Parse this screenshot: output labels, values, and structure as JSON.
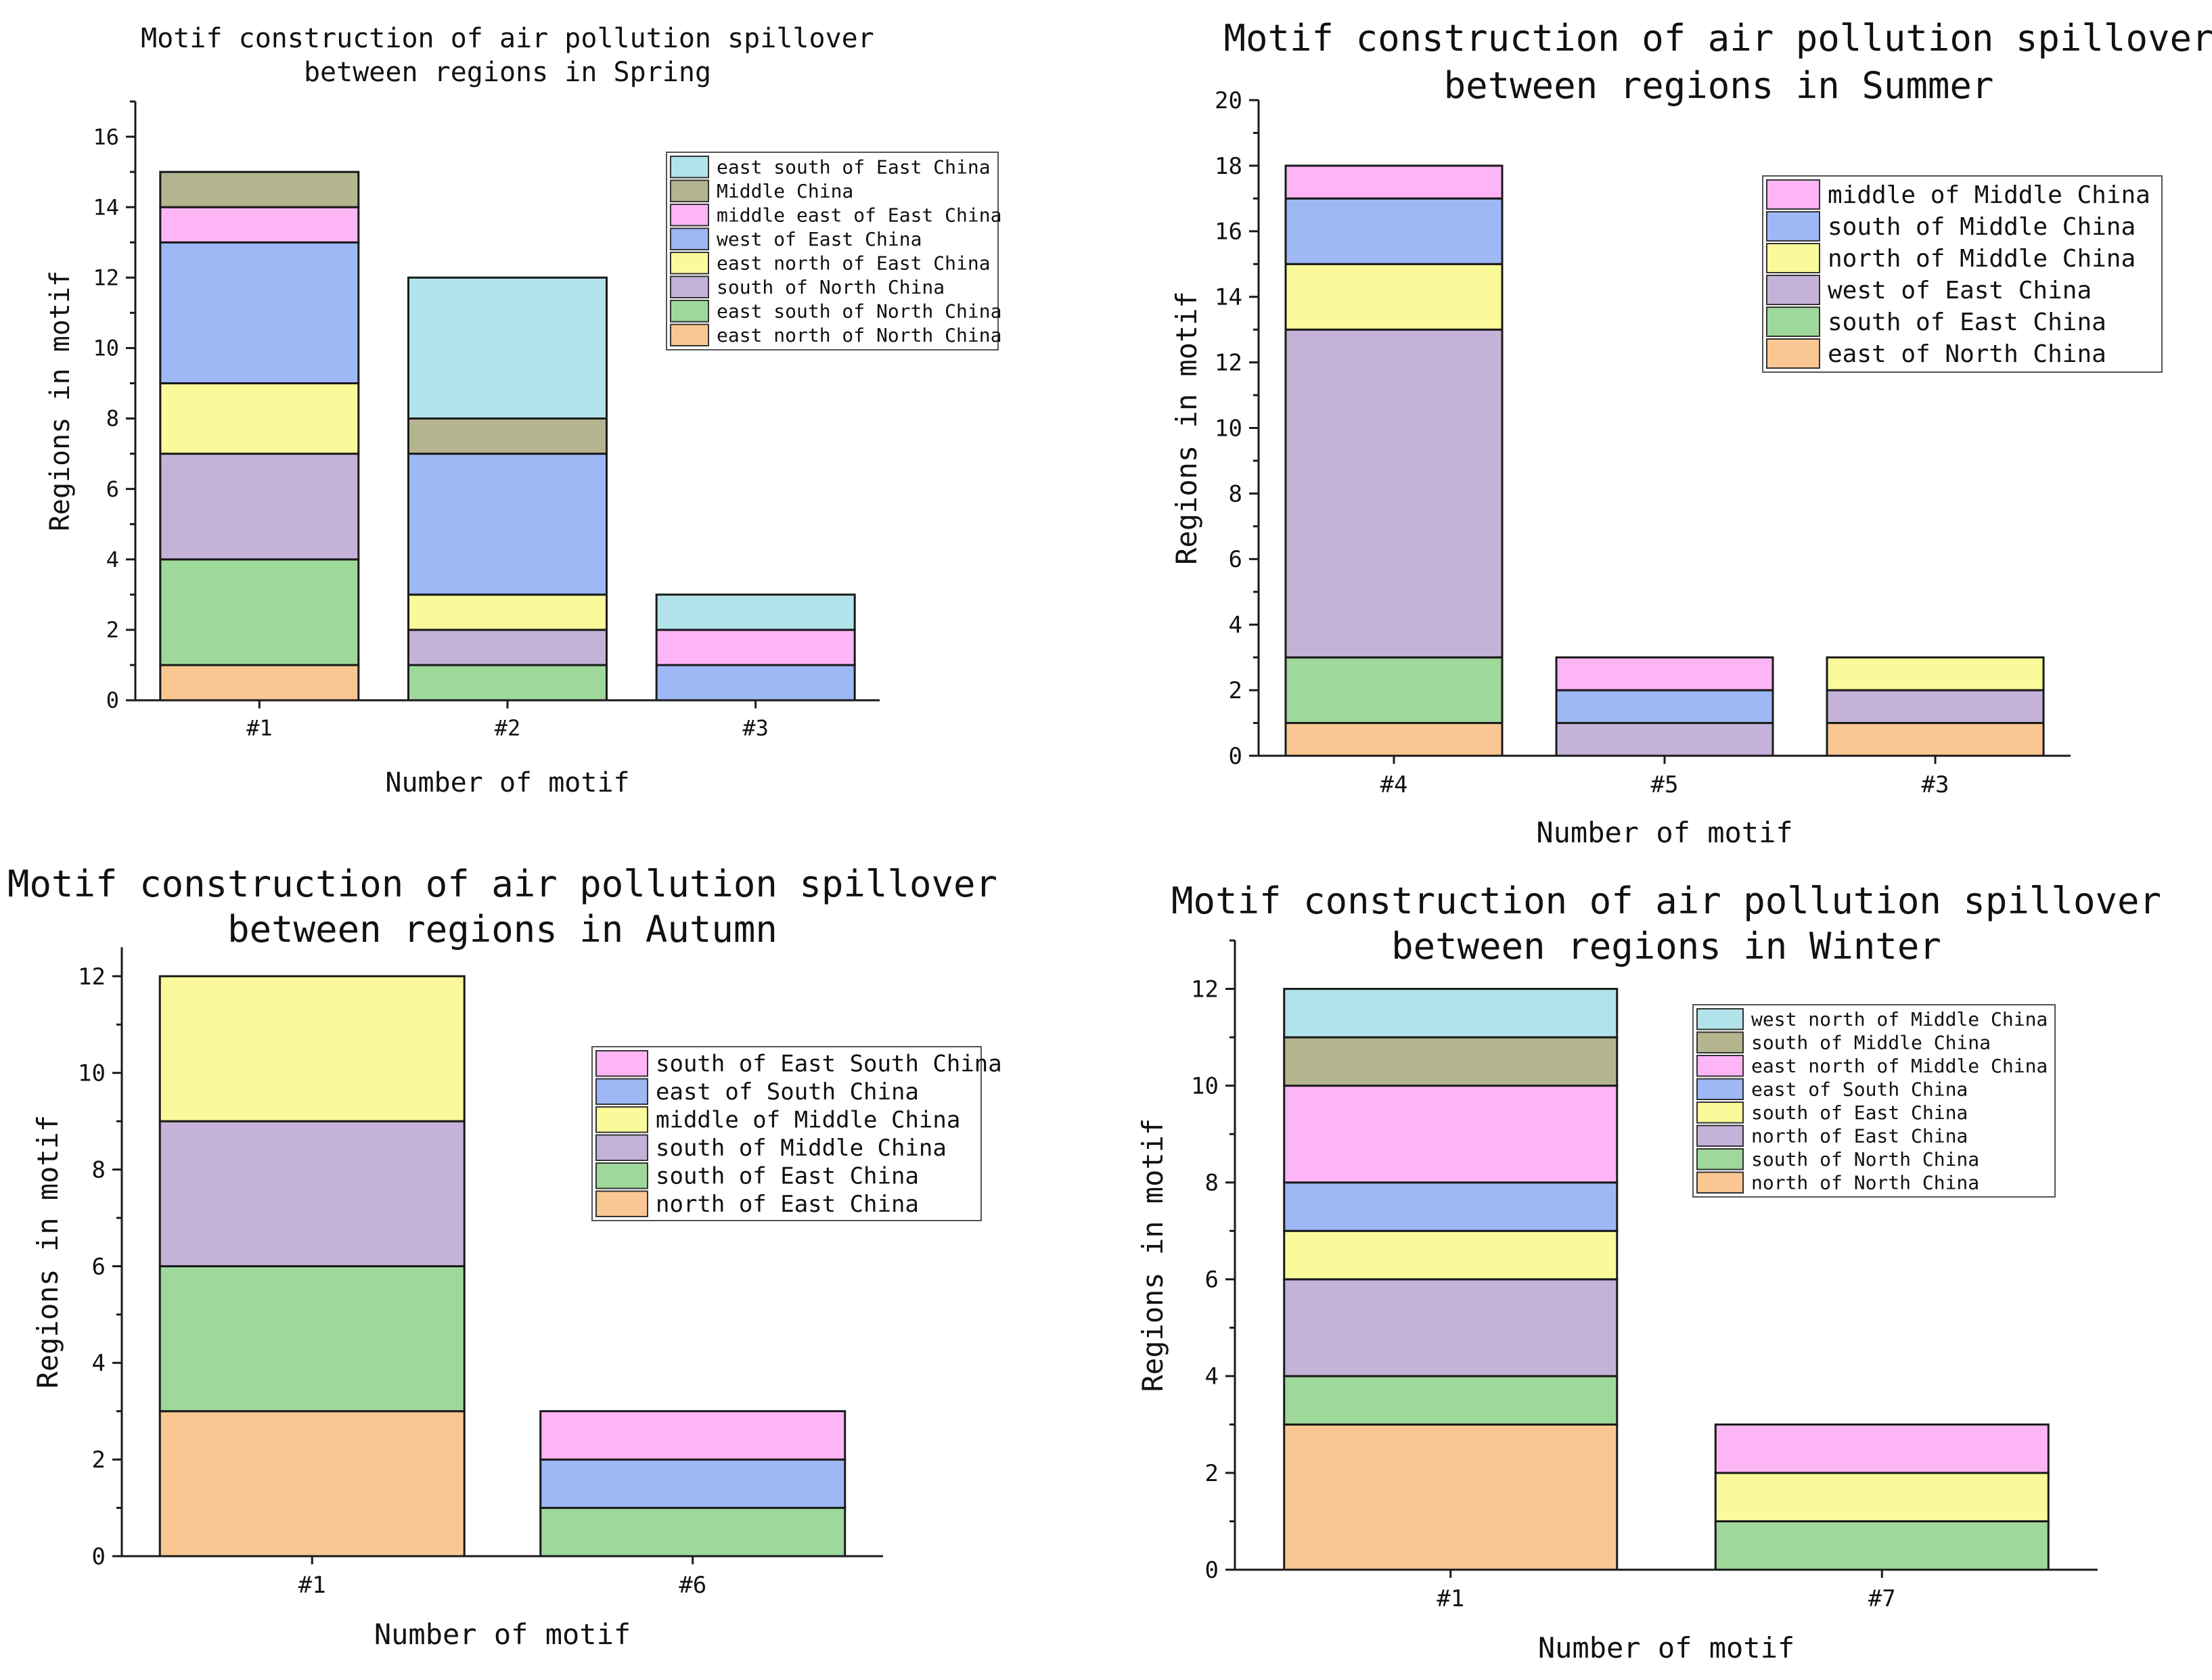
{
  "chart_data": [
    {
      "type": "bar",
      "stacked": true,
      "title": [
        "Motif construction of air pollution spillover",
        "between regions in Spring"
      ],
      "xlabel": "Number of motif",
      "ylabel": "Regions in motif",
      "ylim": [
        0,
        17
      ],
      "yticks": [
        0,
        2,
        4,
        6,
        8,
        10,
        12,
        14,
        16
      ],
      "categories": [
        "#1",
        "#2",
        "#3"
      ],
      "legend_position": "top-right",
      "series": [
        {
          "name": "east north of North China",
          "color": "#fac793",
          "values": [
            1,
            0,
            0
          ]
        },
        {
          "name": "east south of North China",
          "color": "#9ed89a",
          "values": [
            3,
            1,
            0
          ]
        },
        {
          "name": "south of North China",
          "color": "#c4b2d8",
          "values": [
            3,
            1,
            0
          ]
        },
        {
          "name": "east north of East China",
          "color": "#fafa9b",
          "values": [
            2,
            1,
            0
          ]
        },
        {
          "name": "west of East China",
          "color": "#9db8f5",
          "values": [
            4,
            4,
            1
          ]
        },
        {
          "name": "middle east of East China",
          "color": "#fdb5f5",
          "values": [
            1,
            0,
            1
          ]
        },
        {
          "name": "Middle China",
          "color": "#b4b48f",
          "values": [
            1,
            1,
            0
          ]
        },
        {
          "name": "east south of East China",
          "color": "#b3e3ea",
          "values": [
            0,
            4,
            1
          ]
        }
      ]
    },
    {
      "type": "bar",
      "stacked": true,
      "title": [
        "Motif construction of air pollution spillover",
        "between regions in Summer"
      ],
      "xlabel": "Number of motif",
      "ylabel": "Regions in motif",
      "ylim": [
        0,
        20
      ],
      "yticks": [
        0,
        2,
        4,
        6,
        8,
        10,
        12,
        14,
        16,
        18,
        20
      ],
      "categories": [
        "#4",
        "#5",
        "#3"
      ],
      "legend_position": "top-right",
      "series": [
        {
          "name": "east of North China",
          "color": "#fac793",
          "values": [
            1,
            0,
            1
          ]
        },
        {
          "name": "south of East China",
          "color": "#9ed89a",
          "values": [
            2,
            0,
            0
          ]
        },
        {
          "name": "west of East China",
          "color": "#c4b2d8",
          "values": [
            10,
            1,
            1
          ]
        },
        {
          "name": "north of Middle China",
          "color": "#fafa9b",
          "values": [
            2,
            0,
            1
          ]
        },
        {
          "name": "south of Middle China",
          "color": "#9db8f5",
          "values": [
            2,
            1,
            0
          ]
        },
        {
          "name": "middle of Middle China",
          "color": "#fdb5f5",
          "values": [
            1,
            1,
            0
          ]
        }
      ]
    },
    {
      "type": "bar",
      "stacked": true,
      "title": [
        "Motif construction of air pollution spillover",
        "between regions in Autumn"
      ],
      "xlabel": "Number of motif",
      "ylabel": "Regions in motif",
      "ylim": [
        0,
        12.6
      ],
      "yticks": [
        0,
        2,
        4,
        6,
        8,
        10,
        12
      ],
      "categories": [
        "#1",
        "#6"
      ],
      "legend_position": "right",
      "series": [
        {
          "name": "north of East China",
          "color": "#fac793",
          "values": [
            3,
            0
          ]
        },
        {
          "name": "south of East China",
          "color": "#9ed89a",
          "values": [
            3,
            1
          ]
        },
        {
          "name": "south of Middle China",
          "color": "#c4b2d8",
          "values": [
            3,
            0
          ]
        },
        {
          "name": "middle of Middle China",
          "color": "#fafa9b",
          "values": [
            3,
            0
          ]
        },
        {
          "name": "east of South China",
          "color": "#9db8f5",
          "values": [
            0,
            1
          ]
        },
        {
          "name": "south of East South China",
          "color": "#fdb5f5",
          "values": [
            0,
            1
          ]
        }
      ]
    },
    {
      "type": "bar",
      "stacked": true,
      "title": [
        "Motif construction of air pollution spillover",
        "between regions in Winter"
      ],
      "xlabel": "Number of motif",
      "ylabel": "Regions in motif",
      "ylim": [
        0,
        13
      ],
      "yticks": [
        0,
        2,
        4,
        6,
        8,
        10,
        12
      ],
      "categories": [
        "#1",
        "#7"
      ],
      "legend_position": "top-right",
      "series": [
        {
          "name": "north of North China",
          "color": "#fac793",
          "values": [
            3,
            0
          ]
        },
        {
          "name": "south of North China",
          "color": "#9ed89a",
          "values": [
            1,
            1
          ]
        },
        {
          "name": "north of East China",
          "color": "#c4b2d8",
          "values": [
            2,
            0
          ]
        },
        {
          "name": "south of East China",
          "color": "#fafa9b",
          "values": [
            1,
            1
          ]
        },
        {
          "name": "east of South China",
          "color": "#9db8f5",
          "values": [
            1,
            0
          ]
        },
        {
          "name": "east north of Middle China",
          "color": "#fdb5f5",
          "values": [
            2,
            1
          ]
        },
        {
          "name": "south of Middle China",
          "color": "#b4b48f",
          "values": [
            1,
            0
          ]
        },
        {
          "name": "west north of Middle China",
          "color": "#b3e3ea",
          "values": [
            1,
            0
          ]
        }
      ]
    }
  ]
}
